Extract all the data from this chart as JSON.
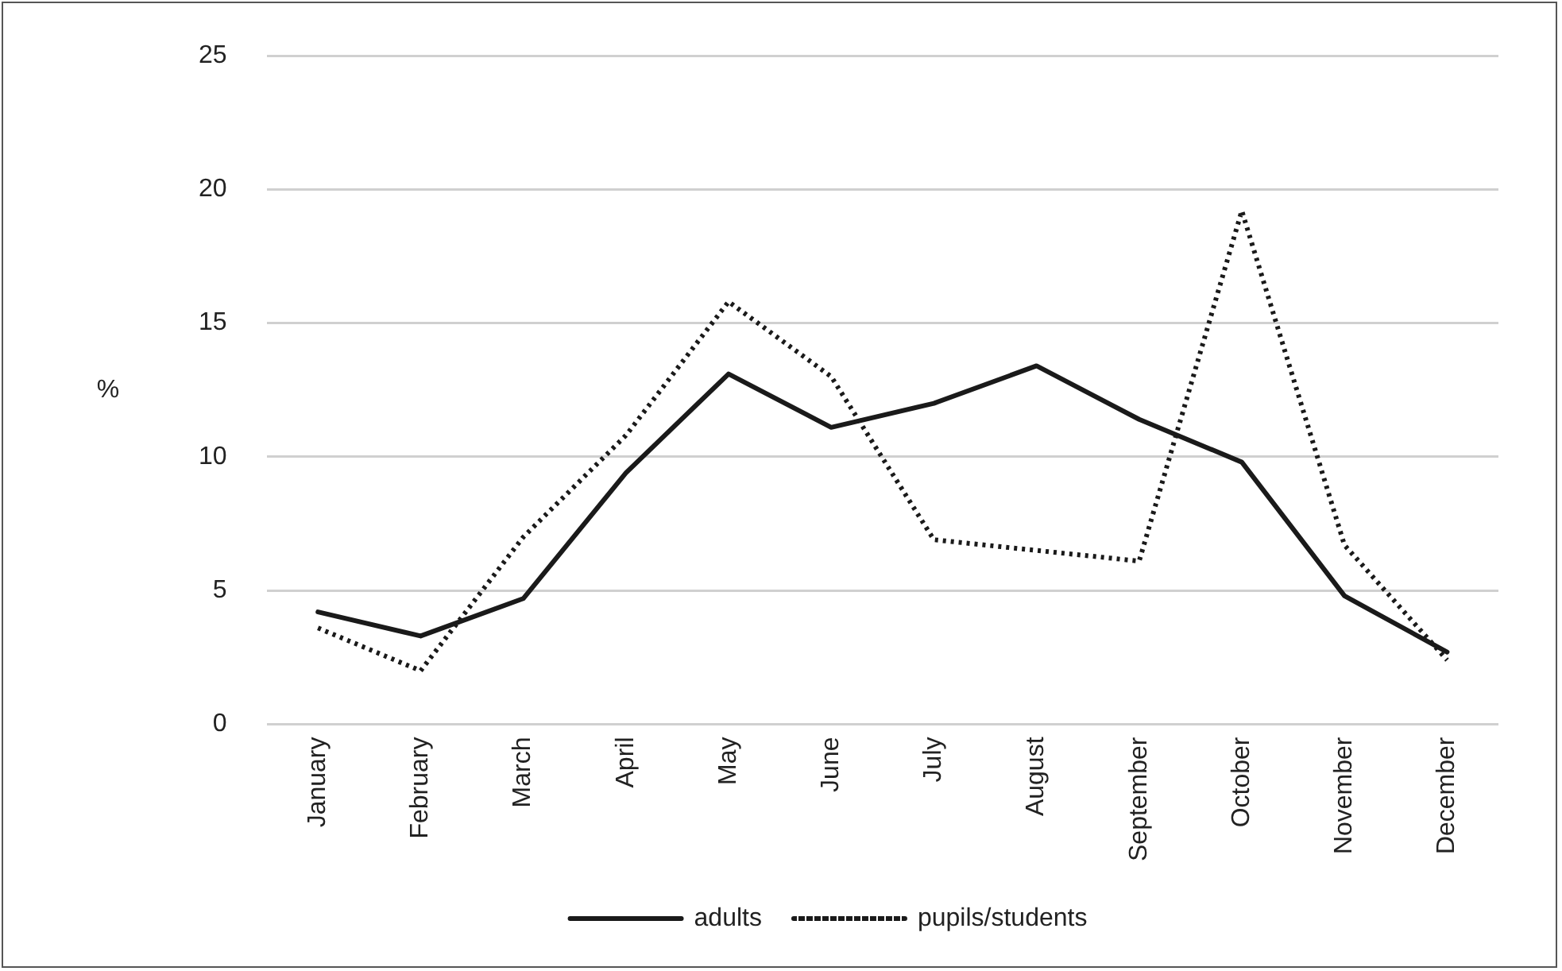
{
  "chart_data": {
    "type": "line",
    "ylabel": "%",
    "categories": [
      "January",
      "February",
      "March",
      "April",
      "May",
      "June",
      "July",
      "August",
      "September",
      "October",
      "November",
      "December"
    ],
    "series": [
      {
        "name": "adults",
        "color": "#1a1a1a",
        "line_style": "solid",
        "values": [
          4.2,
          3.3,
          4.7,
          9.4,
          13.1,
          11.1,
          12.0,
          13.4,
          11.4,
          9.8,
          4.8,
          2.7
        ]
      },
      {
        "name": "pupils/students",
        "color": "#1a1a1a",
        "line_style": "dotted",
        "values": [
          3.6,
          2.0,
          7.0,
          10.8,
          15.8,
          13.0,
          6.9,
          6.5,
          6.1,
          19.2,
          6.7,
          2.4
        ]
      }
    ],
    "ylim": [
      0,
      25
    ],
    "yticks": [
      0,
      5,
      10,
      15,
      20,
      25
    ],
    "grid": "y",
    "legend": "bottom",
    "marker": "none"
  }
}
